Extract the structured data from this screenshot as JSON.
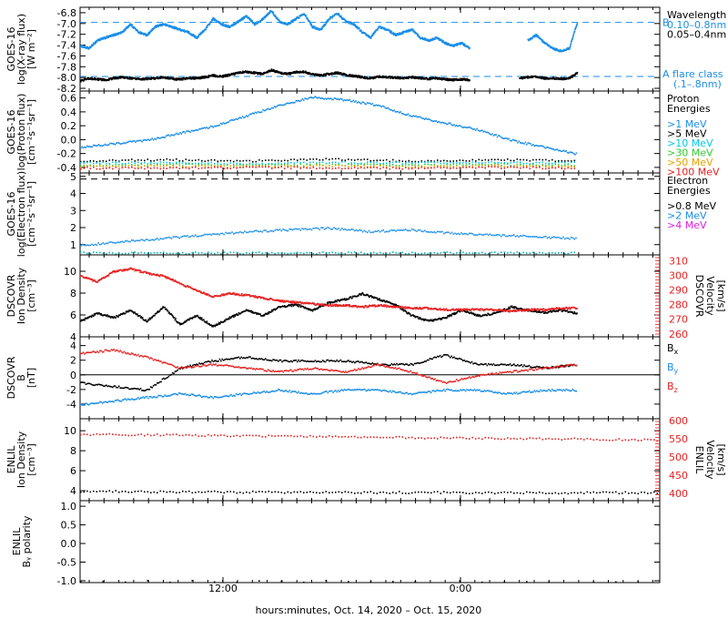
{
  "chart_data": [
    {
      "type": "scatter",
      "ylabel": [
        "GOES-16",
        "log(X-ray flux)",
        "[W m⁻²]"
      ],
      "y_ticks": [
        "-6.8",
        "-7.0",
        "-7.2",
        "-7.4",
        "-7.6",
        "-7.8",
        "-8.0",
        "-8.2"
      ],
      "ylim": [
        -8.25,
        -6.7
      ],
      "legend_title": "Wavelength",
      "legend": [
        {
          "text": "0.10–0.8nm",
          "color": "#1a8ee8"
        },
        {
          "text": "0.05–0.4nm",
          "color": "#000000"
        }
      ],
      "reference_lines": [
        {
          "value": -6.98,
          "label": "B",
          "color": "#1a8ee8"
        },
        {
          "value": -7.98,
          "label": "A",
          "color": "#1a8ee8"
        }
      ],
      "flare_label": [
        "A  flare class",
        "(.1–.8nm)"
      ],
      "series": [
        {
          "name": "0.10–0.8nm",
          "color": "#1a8ee8",
          "x": [
            0,
            1,
            2,
            3,
            4,
            5,
            6,
            7,
            8,
            9,
            10,
            11,
            12,
            13,
            14,
            15,
            16,
            17,
            18,
            19,
            20,
            21,
            22,
            23,
            24,
            25,
            26,
            27,
            28,
            29,
            30,
            31,
            32,
            33,
            34,
            35,
            36,
            37,
            38,
            39,
            40,
            41,
            42,
            43,
            44,
            45,
            46,
            47,
            48,
            49,
            50,
            51,
            52,
            53,
            54,
            55,
            56,
            57,
            58,
            59,
            60
          ],
          "y": [
            -7.4,
            -7.45,
            -7.3,
            -7.25,
            -7.2,
            -7.15,
            -7.0,
            -7.15,
            -7.2,
            -7.05,
            -7.0,
            -7.05,
            -7.1,
            -7.15,
            -7.25,
            -7.1,
            -6.9,
            -7.0,
            -7.05,
            -6.95,
            -6.85,
            -7.0,
            -6.9,
            -6.75,
            -6.95,
            -7.0,
            -6.9,
            -6.8,
            -7.05,
            -7.1,
            -6.9,
            -6.8,
            -6.95,
            -7.0,
            -7.15,
            -7.25,
            -7.05,
            -7.1,
            -7.2,
            -7.15,
            -7.1,
            -7.25,
            -7.3,
            -7.25,
            -7.35,
            -7.4,
            -7.35,
            -7.45,
            null,
            null,
            null,
            null,
            null,
            null,
            -7.3,
            -7.2,
            -7.35,
            -7.45,
            -7.5,
            -7.45,
            -6.95
          ]
        },
        {
          "name": "0.05–0.4nm",
          "color": "#000000",
          "x": [
            0,
            1,
            2,
            3,
            4,
            5,
            6,
            7,
            8,
            9,
            10,
            11,
            12,
            13,
            14,
            15,
            16,
            17,
            18,
            19,
            20,
            21,
            22,
            23,
            24,
            25,
            26,
            27,
            28,
            29,
            30,
            31,
            32,
            33,
            34,
            35,
            36,
            37,
            38,
            39,
            40,
            41,
            42,
            43,
            44,
            45,
            46,
            47,
            48,
            49,
            50,
            51,
            52,
            53,
            54,
            55,
            56,
            57,
            58,
            59,
            60
          ],
          "y": [
            -8.05,
            -8.0,
            -8.02,
            -8.03,
            -8.0,
            -7.98,
            -8.0,
            -8.02,
            -8.01,
            -8.0,
            -7.98,
            -8.01,
            -8.02,
            -8.0,
            -8.0,
            -7.98,
            -7.95,
            -7.97,
            -7.94,
            -7.9,
            -7.88,
            -7.9,
            -7.92,
            -7.85,
            -7.9,
            -7.92,
            -7.89,
            -7.88,
            -7.93,
            -7.95,
            -7.92,
            -7.9,
            -7.94,
            -7.96,
            -7.98,
            -8.0,
            -7.97,
            -7.98,
            -7.99,
            -8.0,
            -7.98,
            -8.0,
            -8.01,
            -8.0,
            -8.02,
            -8.03,
            -8.02,
            -8.03,
            null,
            null,
            null,
            null,
            null,
            -8.0,
            -7.98,
            -7.97,
            -8.0,
            -8.0,
            -8.01,
            -8.0,
            -7.9
          ]
        }
      ]
    },
    {
      "type": "scatter",
      "ylabel": [
        "GOES-16",
        "log(Proton flux)",
        "[cm⁻²s⁻¹sr⁻¹]"
      ],
      "y_ticks": [
        "0.6",
        "0.4",
        "0.2",
        "0.0",
        "-0.2",
        "-0.4"
      ],
      "ylim": [
        -0.48,
        0.7
      ],
      "legend_title": [
        "Proton",
        "Energies"
      ],
      "legend": [
        {
          "text": ">1 MeV",
          "color": "#1a8ee8"
        },
        {
          "text": ">5 MeV",
          "color": "#000000"
        },
        {
          "text": ">10 MeV",
          "color": "#00c8e8"
        },
        {
          "text": ">30 MeV",
          "color": "#33cc33"
        },
        {
          "text": ">50 MeV",
          "color": "#e8a000"
        },
        {
          "text": ">100 MeV",
          "color": "#e82020"
        }
      ],
      "series": [
        {
          "name": ">1 MeV",
          "color": "#1a8ee8",
          "x": [
            0,
            4,
            8,
            12,
            16,
            20,
            24,
            28,
            32,
            36,
            40,
            44,
            48,
            52,
            56,
            60
          ],
          "y": [
            -0.1,
            -0.05,
            0.0,
            0.1,
            0.2,
            0.35,
            0.5,
            0.62,
            0.58,
            0.5,
            0.35,
            0.25,
            0.15,
            0.0,
            -0.1,
            -0.2
          ]
        },
        {
          "name": ">5 MeV",
          "color": "#000000",
          "x": [
            0,
            10,
            20,
            30,
            40,
            50,
            60
          ],
          "y": [
            -0.3,
            -0.28,
            -0.3,
            -0.27,
            -0.3,
            -0.28,
            -0.3
          ]
        },
        {
          "name": ">10 MeV",
          "color": "#00c8e8",
          "x": [
            0,
            10,
            20,
            30,
            40,
            50,
            60
          ],
          "y": [
            -0.33,
            -0.32,
            -0.34,
            -0.32,
            -0.33,
            -0.32,
            -0.33
          ]
        },
        {
          "name": ">30 MeV",
          "color": "#33cc33",
          "x": [
            0,
            10,
            20,
            30,
            40,
            50,
            60
          ],
          "y": [
            -0.36,
            -0.35,
            -0.36,
            -0.35,
            -0.36,
            -0.35,
            -0.36
          ]
        },
        {
          "name": ">50 MeV",
          "color": "#e8a000",
          "x": [
            0,
            10,
            20,
            30,
            40,
            50,
            60
          ],
          "y": [
            -0.38,
            -0.37,
            -0.38,
            -0.37,
            -0.38,
            -0.37,
            -0.38
          ]
        },
        {
          "name": ">100 MeV",
          "color": "#e82020",
          "x": [
            0,
            10,
            20,
            30,
            40,
            50,
            60
          ],
          "y": [
            -0.4,
            -0.4,
            -0.39,
            -0.4,
            -0.4,
            -0.39,
            -0.4
          ]
        }
      ]
    },
    {
      "type": "scatter",
      "ylabel": [
        "GOES-16",
        "log(Electron flux)",
        "[cm⁻²s⁻¹sr⁻¹]"
      ],
      "y_ticks": [
        "5",
        "4",
        "3",
        "2",
        "1"
      ],
      "ylim": [
        0.4,
        5.2
      ],
      "legend_title": [
        "Electron",
        "Energies"
      ],
      "legend": [
        {
          "text": ">0.8 MeV",
          "color": "#000000"
        },
        {
          "text": ">2 MeV",
          "color": "#1a8ee8"
        },
        {
          "text": ">4 MeV",
          "color": "#e020e0"
        }
      ],
      "reference_lines": [
        {
          "value": 4.85,
          "color": "#000000"
        }
      ],
      "series": [
        {
          "name": ">2 MeV",
          "color": "#1a8ee8",
          "x": [
            0,
            5,
            10,
            15,
            20,
            25,
            30,
            35,
            40,
            45,
            50,
            55,
            60
          ],
          "y": [
            1.0,
            1.2,
            1.4,
            1.6,
            1.8,
            1.9,
            2.0,
            1.8,
            1.9,
            1.7,
            1.6,
            1.5,
            1.4
          ]
        },
        {
          "name": ">4 MeV",
          "color": "#00b8b8",
          "x": [
            0,
            10,
            20,
            30,
            40,
            50,
            60
          ],
          "y": [
            0.55,
            0.55,
            0.55,
            0.55,
            0.55,
            0.55,
            0.55
          ]
        }
      ]
    },
    {
      "type": "scatter",
      "ylabel": [
        "DSCOVR",
        "Ion Density",
        "[cm⁻³]"
      ],
      "y_ticks": [
        "10",
        "8",
        "6",
        "4"
      ],
      "ylim": [
        4,
        11.5
      ],
      "right_ylabel": [
        "DSCOVR",
        "Velocity",
        "[km/s]"
      ],
      "right_ticks": [
        "310",
        "300",
        "290",
        "280",
        "270",
        "260"
      ],
      "right_ylim": [
        258,
        314
      ],
      "series": [
        {
          "name": "Density",
          "color": "#000000",
          "x": [
            0,
            2,
            4,
            6,
            8,
            10,
            12,
            14,
            16,
            18,
            20,
            22,
            24,
            26,
            28,
            30,
            32,
            34,
            36,
            38,
            40,
            42,
            44,
            46,
            48,
            50,
            52,
            54,
            56,
            58,
            60
          ],
          "y": [
            5.5,
            6.2,
            5.8,
            6.5,
            5.5,
            6.8,
            5.2,
            6.0,
            5.0,
            5.8,
            6.5,
            6.0,
            6.8,
            7.0,
            6.5,
            7.2,
            7.5,
            8.0,
            7.5,
            7.0,
            6.0,
            5.5,
            5.8,
            6.5,
            6.0,
            6.2,
            6.8,
            6.5,
            6.3,
            6.5,
            6.2
          ]
        },
        {
          "name": "Velocity",
          "color": "#e82020",
          "axis": "right",
          "x": [
            0,
            2,
            4,
            6,
            8,
            10,
            12,
            14,
            16,
            18,
            20,
            22,
            24,
            26,
            28,
            30,
            32,
            34,
            36,
            38,
            40,
            42,
            44,
            46,
            48,
            50,
            52,
            54,
            56,
            58,
            60
          ],
          "y": [
            300,
            296,
            303,
            305,
            302,
            300,
            295,
            290,
            286,
            288,
            287,
            285,
            283,
            282,
            281,
            280,
            280,
            279,
            280,
            279,
            278,
            278,
            277,
            277,
            277,
            277,
            276,
            277,
            277,
            278,
            278
          ]
        }
      ]
    },
    {
      "type": "scatter",
      "ylabel": [
        "DSCOVR",
        "B",
        "[nT]"
      ],
      "y_ticks": [
        "4",
        "2",
        "0",
        "-2",
        "-4"
      ],
      "ylim": [
        -6,
        5.2
      ],
      "legend": [
        {
          "text": "B",
          "sub": "x",
          "color": "#000000"
        },
        {
          "text": "B",
          "sub": "y",
          "color": "#1a8ee8"
        },
        {
          "text": "B",
          "sub": "z",
          "color": "#e82020"
        }
      ],
      "zero_line": 0,
      "series": [
        {
          "name": "Bx",
          "color": "#000000",
          "x": [
            0,
            4,
            8,
            12,
            16,
            20,
            24,
            28,
            32,
            36,
            40,
            44,
            48,
            52,
            56,
            60
          ],
          "y": [
            -1.0,
            -1.5,
            -2.0,
            1.0,
            2.0,
            2.5,
            2.0,
            2.0,
            2.0,
            1.5,
            1.5,
            2.8,
            1.5,
            1.5,
            1.0,
            1.5
          ]
        },
        {
          "name": "By",
          "color": "#1a8ee8",
          "x": [
            0,
            4,
            8,
            12,
            16,
            20,
            24,
            28,
            32,
            36,
            40,
            44,
            48,
            52,
            56,
            60
          ],
          "y": [
            -4.0,
            -3.5,
            -3.0,
            -2.5,
            -3.0,
            -2.5,
            -2.0,
            -2.5,
            -2.0,
            -2.0,
            -2.5,
            -2.0,
            -2.0,
            -2.5,
            -2.0,
            -2.0
          ]
        },
        {
          "name": "Bz",
          "color": "#e82020",
          "x": [
            0,
            4,
            8,
            12,
            16,
            20,
            24,
            28,
            32,
            36,
            40,
            44,
            48,
            52,
            56,
            60
          ],
          "y": [
            3.0,
            3.5,
            2.5,
            1.0,
            1.5,
            1.0,
            0.5,
            1.0,
            0.5,
            1.5,
            0.5,
            -1.0,
            0.0,
            0.5,
            1.0,
            1.5
          ]
        }
      ]
    },
    {
      "type": "scatter",
      "ylabel": [
        "ENLIL",
        "Ion Density",
        "[cm⁻³]"
      ],
      "y_ticks": [
        "10",
        "8",
        "6",
        "4"
      ],
      "ylim": [
        3,
        11.2
      ],
      "right_ylabel": [
        "ENLIL",
        "Velocity",
        "[km/s]"
      ],
      "right_ticks": [
        "600",
        "550",
        "500",
        "450",
        "400"
      ],
      "right_ylim": [
        380,
        605
      ],
      "series": [
        {
          "name": "Density",
          "color": "#000000",
          "x": [
            0,
            10,
            20,
            30,
            40,
            50,
            60,
            70
          ],
          "y": [
            4.0,
            3.95,
            3.92,
            3.9,
            3.88,
            3.87,
            3.86,
            3.85
          ]
        },
        {
          "name": "Velocity",
          "color": "#e82020",
          "axis": "right",
          "x": [
            0,
            10,
            20,
            30,
            40,
            50,
            60,
            70
          ],
          "y": [
            564,
            562,
            560,
            558,
            555,
            553,
            551,
            548
          ]
        }
      ]
    },
    {
      "type": "scatter",
      "ylabel": [
        "ENLIL",
        "Bᵧ polarity"
      ],
      "y_ticks": [
        "1.0",
        "0.5",
        "0.0",
        "-0.5",
        "-1.0"
      ],
      "ylim": [
        -1.05,
        1.15
      ],
      "series": [
        {
          "name": "polarity",
          "color": "#000000",
          "x": [
            0,
            70
          ],
          "y": [
            -1.0,
            -1.0
          ]
        }
      ]
    }
  ],
  "x_axis": {
    "ticks": [
      "12:00",
      "0:00"
    ],
    "title": "hours:minutes, Oct. 14, 2020 – Oct. 15, 2020"
  }
}
